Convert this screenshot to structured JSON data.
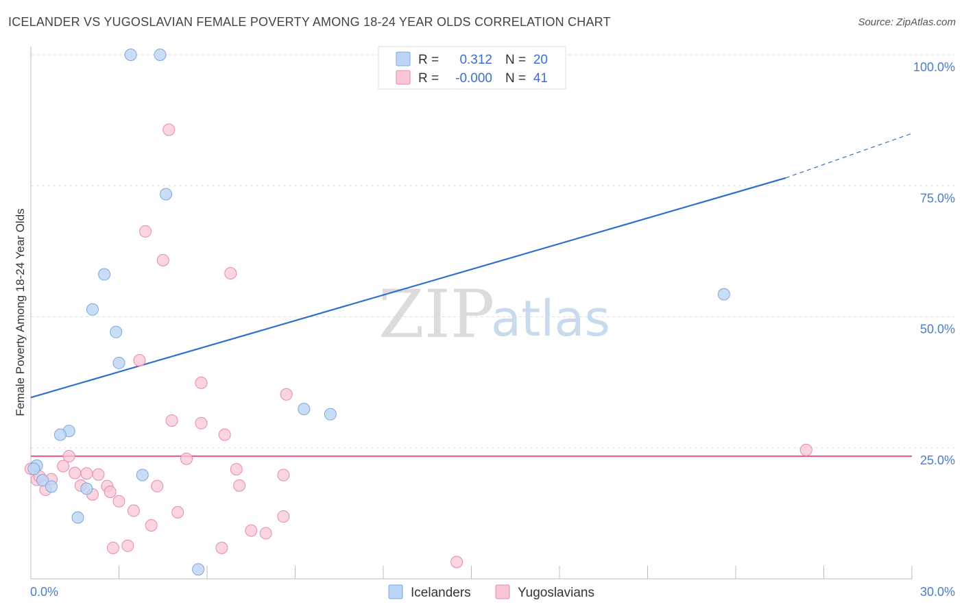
{
  "title": "ICELANDER VS YUGOSLAVIAN FEMALE POVERTY AMONG 18-24 YEAR OLDS CORRELATION CHART",
  "source": "Source: ZipAtlas.com",
  "watermark": {
    "zip": "ZIP",
    "atlas": "atlas"
  },
  "colors": {
    "blue_fill": "#bcd4f5",
    "blue_stroke": "#7aa6e0",
    "blue_line": "#2f6fcc",
    "pink_fill": "#f8c6d6",
    "pink_stroke": "#e88aa8",
    "pink_line": "#e8608d",
    "grid": "#dddddd"
  },
  "legend": {
    "rows": [
      {
        "r_label": "R =",
        "r_value": "0.312",
        "n_label": "N =",
        "n_value": "20"
      },
      {
        "r_label": "R =",
        "r_value": "-0.000",
        "n_label": "N =",
        "n_value": "41"
      }
    ]
  },
  "bottom_legend": [
    "Icelanders",
    "Yugoslavians"
  ],
  "chart_data": {
    "type": "scatter",
    "title": "ICELANDER VS YUGOSLAVIAN FEMALE POVERTY AMONG 18-24 YEAR OLDS CORRELATION CHART",
    "ylabel": "Female Poverty Among 18-24 Year Olds",
    "xlabel": "",
    "xlim": [
      0,
      30
    ],
    "ylim": [
      0,
      100
    ],
    "x_tick_labels": [
      "0.0%",
      "30.0%"
    ],
    "y_ticks": [
      25,
      50,
      75,
      100
    ],
    "y_tick_labels": [
      "25.0%",
      "50.0%",
      "75.0%",
      "100.0%"
    ],
    "grid": true,
    "series": [
      {
        "name": "Icelanders",
        "points": [
          [
            3.4,
            100
          ],
          [
            4.4,
            100
          ],
          [
            4.6,
            73.4
          ],
          [
            2.5,
            58.1
          ],
          [
            2.1,
            51.4
          ],
          [
            2.9,
            47.1
          ],
          [
            3.0,
            41.2
          ],
          [
            1.3,
            28.2
          ],
          [
            1.0,
            27.5
          ],
          [
            9.3,
            32.4
          ],
          [
            10.2,
            31.4
          ],
          [
            23.6,
            54.3
          ],
          [
            3.8,
            19.8
          ],
          [
            0.2,
            21.6
          ],
          [
            0.4,
            18.8
          ],
          [
            0.7,
            17.6
          ],
          [
            1.9,
            17.2
          ],
          [
            1.6,
            11.7
          ],
          [
            5.7,
            1.8
          ],
          [
            0.1,
            21.0
          ]
        ],
        "trend": {
          "x": [
            0,
            25.7
          ],
          "y": [
            34.6,
            76.5
          ],
          "dashed_to": [
            30,
            85
          ]
        }
      },
      {
        "name": "Yugoslavians",
        "points": [
          [
            4.7,
            85.7
          ],
          [
            3.9,
            66.3
          ],
          [
            4.5,
            60.8
          ],
          [
            6.8,
            58.3
          ],
          [
            3.7,
            41.7
          ],
          [
            5.8,
            37.4
          ],
          [
            8.7,
            35.2
          ],
          [
            4.8,
            30.2
          ],
          [
            5.8,
            29.7
          ],
          [
            6.6,
            27.5
          ],
          [
            1.3,
            23.4
          ],
          [
            5.3,
            22.9
          ],
          [
            26.4,
            24.6
          ],
          [
            1.1,
            21.5
          ],
          [
            7.0,
            20.9
          ],
          [
            1.5,
            20.2
          ],
          [
            1.9,
            20.1
          ],
          [
            2.3,
            19.9
          ],
          [
            8.6,
            19.8
          ],
          [
            0.7,
            19.0
          ],
          [
            0.2,
            18.9
          ],
          [
            1.7,
            17.8
          ],
          [
            2.6,
            17.7
          ],
          [
            4.3,
            17.7
          ],
          [
            7.1,
            17.8
          ],
          [
            0.5,
            17.0
          ],
          [
            2.7,
            16.6
          ],
          [
            2.1,
            16.1
          ],
          [
            3.0,
            14.8
          ],
          [
            3.5,
            13.0
          ],
          [
            5.0,
            12.7
          ],
          [
            8.6,
            11.9
          ],
          [
            4.1,
            10.2
          ],
          [
            7.5,
            9.2
          ],
          [
            8.0,
            8.7
          ],
          [
            3.3,
            6.3
          ],
          [
            2.8,
            5.9
          ],
          [
            6.5,
            5.9
          ],
          [
            14.5,
            3.2
          ],
          [
            0.0,
            21.0
          ],
          [
            0.3,
            19.5
          ]
        ],
        "trend": {
          "x": [
            0,
            30
          ],
          "y": [
            23.4,
            23.4
          ]
        }
      }
    ]
  }
}
